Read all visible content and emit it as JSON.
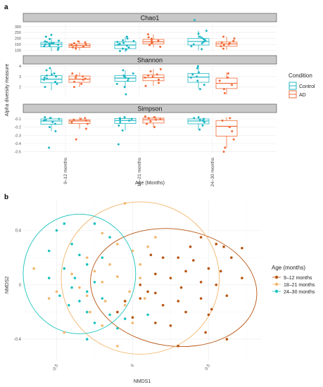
{
  "panel_a": {
    "label": "a",
    "ylabel": "Alpha diversity measure",
    "xlabel": "Age (Months)",
    "legend_title": "Condition",
    "legend_items": [
      "Control",
      "AD"
    ],
    "colors": {
      "Control": "#1fb7c4",
      "AD": "#f26b38"
    }
  },
  "panel_b": {
    "label": "b",
    "xlabel": "NMDS1",
    "ylabel": "NMDS2",
    "legend_title": "Age (months)",
    "legend_items": [
      "9–12 months",
      "18–21 months",
      "24–30 months"
    ],
    "colors": {
      "9-12": "#b85410",
      "18-21": "#f2b66c",
      "24-30": "#1cc3bd"
    }
  },
  "chart_data": [
    {
      "type": "box",
      "facets": [
        "Chao1",
        "Shannon",
        "Simpson"
      ],
      "categories": [
        "9–12 months",
        "18–21 months",
        "24–30 months"
      ],
      "series_names": [
        "Control",
        "AD"
      ],
      "y_ticks": {
        "Chao1": [
          100,
          150,
          200,
          250,
          300
        ],
        "Shannon": [
          2,
          3,
          4
        ],
        "Simpson": [
          -0.1,
          -0.2,
          -0.3,
          -0.4,
          -0.5
        ]
      },
      "y_tick_labels": {
        "Chao1": [
          "100",
          "150",
          "200",
          "250",
          "300"
        ],
        "Shannon": [
          "2",
          "3",
          "4"
        ],
        "Simpson": [
          "-0.1",
          "-0.2",
          "-0.3",
          "-0.4",
          "-0.5"
        ]
      },
      "ylim": {
        "Chao1": [
          80,
          340
        ],
        "Shannon": [
          1.1,
          4.2
        ],
        "Simpson": [
          -0.52,
          -0.04
        ]
      },
      "boxes": {
        "Chao1": [
          {
            "cat": 0,
            "series": "Control",
            "q1": 130,
            "median": 152,
            "q3": 168,
            "wlo": 95,
            "whi": 205
          },
          {
            "cat": 0,
            "series": "AD",
            "q1": 125,
            "median": 140,
            "q3": 155,
            "wlo": 100,
            "whi": 180
          },
          {
            "cat": 1,
            "series": "Control",
            "q1": 115,
            "median": 145,
            "q3": 172,
            "wlo": 85,
            "whi": 215
          },
          {
            "cat": 1,
            "series": "AD",
            "q1": 155,
            "median": 172,
            "q3": 192,
            "wlo": 125,
            "whi": 235
          },
          {
            "cat": 2,
            "series": "Control",
            "q1": 145,
            "median": 175,
            "q3": 200,
            "wlo": 100,
            "whi": 265
          },
          {
            "cat": 2,
            "series": "AD",
            "q1": 135,
            "median": 155,
            "q3": 170,
            "wlo": 105,
            "whi": 215
          }
        ],
        "Shannon": [
          {
            "cat": 0,
            "series": "Control",
            "q1": 2.4,
            "median": 2.75,
            "q3": 3.1,
            "wlo": 1.7,
            "whi": 3.7
          },
          {
            "cat": 0,
            "series": "AD",
            "q1": 2.45,
            "median": 2.75,
            "q3": 3.05,
            "wlo": 2.0,
            "whi": 3.4
          },
          {
            "cat": 1,
            "series": "Control",
            "q1": 2.55,
            "median": 2.85,
            "q3": 3.1,
            "wlo": 1.9,
            "whi": 3.6
          },
          {
            "cat": 1,
            "series": "AD",
            "q1": 2.6,
            "median": 2.9,
            "q3": 3.15,
            "wlo": 2.1,
            "whi": 3.7
          },
          {
            "cat": 2,
            "series": "Control",
            "q1": 2.45,
            "median": 2.95,
            "q3": 3.3,
            "wlo": 1.8,
            "whi": 3.9
          },
          {
            "cat": 2,
            "series": "AD",
            "q1": 1.85,
            "median": 2.35,
            "q3": 2.85,
            "wlo": 1.3,
            "whi": 3.4
          }
        ],
        "Simpson": [
          {
            "cat": 0,
            "series": "Control",
            "q1": -0.165,
            "median": -0.125,
            "q3": -0.1,
            "wlo": -0.25,
            "whi": -0.07
          },
          {
            "cat": 0,
            "series": "AD",
            "q1": -0.155,
            "median": -0.125,
            "q3": -0.11,
            "wlo": -0.22,
            "whi": -0.08
          },
          {
            "cat": 1,
            "series": "Control",
            "q1": -0.155,
            "median": -0.12,
            "q3": -0.095,
            "wlo": -0.24,
            "whi": -0.07
          },
          {
            "cat": 1,
            "series": "AD",
            "q1": -0.15,
            "median": -0.11,
            "q3": -0.09,
            "wlo": -0.2,
            "whi": -0.07
          },
          {
            "cat": 2,
            "series": "Control",
            "q1": -0.16,
            "median": -0.125,
            "q3": -0.1,
            "wlo": -0.23,
            "whi": -0.07
          },
          {
            "cat": 2,
            "series": "AD",
            "q1": -0.31,
            "median": -0.19,
            "q3": -0.12,
            "wlo": -0.45,
            "whi": -0.08
          }
        ]
      },
      "points": {
        "Chao1": [
          [
            0,
            "Control",
            [
              105,
              120,
              135,
              140,
              148,
              150,
              155,
              160,
              162,
              170,
              175,
              182,
              195,
              215,
              230
            ]
          ],
          [
            0,
            "AD",
            [
              115,
              125,
              130,
              138,
              142,
              148,
              152,
              160,
              168,
              175
            ]
          ],
          [
            1,
            "Control",
            [
              95,
              105,
              115,
              125,
              140,
              148,
              155,
              162,
              170,
              178,
              185,
              200,
              215
            ]
          ],
          [
            1,
            "AD",
            [
              130,
              145,
              160,
              168,
              175,
              182,
              190,
              198,
              210,
              235
            ]
          ],
          [
            2,
            "Control",
            [
              110,
              135,
              150,
              160,
              172,
              180,
              188,
              195,
              205,
              215,
              240,
              265,
              355
            ]
          ],
          [
            2,
            "AD",
            [
              115,
              135,
              145,
              152,
              160,
              168,
              180,
              200,
              215
            ]
          ]
        ],
        "Shannon": [
          [
            0,
            "Control",
            [
              2.0,
              2.3,
              2.5,
              2.7,
              2.8,
              2.9,
              3.0,
              3.1,
              3.2,
              3.3,
              3.6,
              3.8
            ]
          ],
          [
            0,
            "AD",
            [
              2.0,
              2.3,
              2.5,
              2.7,
              2.8,
              2.9,
              3.0,
              3.1,
              3.3
            ]
          ],
          [
            1,
            "Control",
            [
              1.3,
              2.0,
              2.3,
              2.6,
              2.8,
              2.9,
              3.0,
              3.1,
              3.3,
              3.6
            ]
          ],
          [
            1,
            "AD",
            [
              2.1,
              2.4,
              2.7,
              2.9,
              3.0,
              3.1,
              3.2,
              3.5,
              3.7
            ]
          ],
          [
            2,
            "Control",
            [
              1.8,
              2.2,
              2.6,
              2.9,
              3.0,
              3.2,
              3.4,
              3.8,
              4.0
            ]
          ],
          [
            2,
            "AD",
            [
              1.4,
              1.8,
              2.2,
              2.6,
              2.9,
              3.3
            ]
          ]
        ],
        "Simpson": [
          [
            0,
            "Control",
            [
              -0.45,
              -0.25,
              -0.2,
              -0.16,
              -0.14,
              -0.12,
              -0.11,
              -0.1,
              -0.09,
              -0.08
            ]
          ],
          [
            0,
            "AD",
            [
              -0.35,
              -0.22,
              -0.16,
              -0.14,
              -0.12,
              -0.11,
              -0.1,
              -0.09
            ]
          ],
          [
            1,
            "Control",
            [
              -0.41,
              -0.24,
              -0.18,
              -0.14,
              -0.12,
              -0.11,
              -0.1,
              -0.09,
              -0.08
            ]
          ],
          [
            1,
            "AD",
            [
              -0.2,
              -0.16,
              -0.13,
              -0.11,
              -0.1,
              -0.09,
              -0.08,
              -0.07
            ]
          ],
          [
            2,
            "Control",
            [
              -0.23,
              -0.18,
              -0.14,
              -0.12,
              -0.11,
              -0.1,
              -0.09,
              -0.08
            ]
          ],
          [
            2,
            "AD",
            [
              -0.5,
              -0.45,
              -0.35,
              -0.25,
              -0.2,
              -0.12,
              -0.09
            ]
          ]
        ]
      }
    },
    {
      "type": "scatter",
      "xlabel": "NMDS1",
      "ylabel": "NMDS2",
      "xlim": [
        -0.72,
        0.85
      ],
      "ylim": [
        -0.56,
        0.62
      ],
      "x_ticks": [
        -0.5,
        0,
        0.5
      ],
      "x_tick_labels": [
        "-0.5",
        "0",
        "0.5"
      ],
      "y_ticks": [
        -0.4,
        0,
        0.4
      ],
      "y_tick_labels": [
        "-0.4",
        "0",
        "0.4"
      ],
      "ellipses": [
        {
          "group": "9-12",
          "cx": 0.27,
          "cy": -0.02,
          "rx": 0.55,
          "ry": 0.43,
          "angle": 8
        },
        {
          "group": "18-21",
          "cx": 0.05,
          "cy": 0.05,
          "rx": 0.52,
          "ry": 0.56,
          "angle": 0
        },
        {
          "group": "24-30",
          "cx": -0.35,
          "cy": 0.08,
          "rx": 0.37,
          "ry": 0.44,
          "angle": 0
        }
      ],
      "series": [
        {
          "name": "9–12 months",
          "group": "9-12",
          "points": [
            [
              0.45,
              0.35
            ],
            [
              0.55,
              0.3
            ],
            [
              0.6,
              0.28
            ],
            [
              0.72,
              0.27
            ],
            [
              0.65,
              0.2
            ],
            [
              0.4,
              0.18
            ],
            [
              0.3,
              0.2
            ],
            [
              0.2,
              0.2
            ],
            [
              0.12,
              0.22
            ],
            [
              0.5,
              0.12
            ],
            [
              0.72,
              0.05
            ],
            [
              0.58,
              0.1
            ],
            [
              0.35,
              0.1
            ],
            [
              0.25,
              0.05
            ],
            [
              0.15,
              0.08
            ],
            [
              0.05,
              0.0
            ],
            [
              0.45,
              0.02
            ],
            [
              0.55,
              0.0
            ],
            [
              0.32,
              -0.02
            ],
            [
              0.15,
              -0.06
            ],
            [
              0.05,
              -0.1
            ],
            [
              -0.05,
              -0.12
            ],
            [
              0.3,
              -0.12
            ],
            [
              0.45,
              -0.1
            ],
            [
              0.62,
              -0.08
            ],
            [
              0.2,
              -0.15
            ],
            [
              0.35,
              -0.2
            ],
            [
              0.5,
              -0.22
            ],
            [
              0.15,
              -0.28
            ],
            [
              0.0,
              -0.24
            ],
            [
              0.25,
              -0.3
            ],
            [
              0.3,
              -0.45
            ],
            [
              0.62,
              -0.4
            ],
            [
              0.48,
              -0.35
            ],
            [
              -0.1,
              -0.2
            ],
            [
              0.1,
              -0.05
            ],
            [
              0.38,
              0.28
            ],
            [
              0.52,
              -0.18
            ]
          ]
        },
        {
          "name": "18–21 months",
          "group": "18-21",
          "points": [
            [
              -0.05,
              0.6
            ],
            [
              -0.2,
              0.38
            ],
            [
              -0.1,
              0.3
            ],
            [
              0.0,
              0.25
            ],
            [
              -0.3,
              0.2
            ],
            [
              -0.15,
              0.15
            ],
            [
              0.05,
              0.15
            ],
            [
              -0.25,
              0.1
            ],
            [
              -0.4,
              0.08
            ],
            [
              -0.1,
              0.06
            ],
            [
              0.05,
              0.05
            ],
            [
              -0.2,
              0.02
            ],
            [
              -0.35,
              -0.02
            ],
            [
              -0.5,
              -0.05
            ],
            [
              -0.3,
              -0.08
            ],
            [
              0.08,
              -0.1
            ],
            [
              -0.18,
              -0.12
            ],
            [
              -0.05,
              -0.15
            ],
            [
              -0.28,
              -0.2
            ],
            [
              0.0,
              -0.28
            ],
            [
              -0.2,
              -0.3
            ],
            [
              -0.45,
              -0.35
            ],
            [
              -0.1,
              -0.45
            ],
            [
              -0.65,
              0.12
            ],
            [
              -0.55,
              -0.1
            ],
            [
              0.1,
              0.28
            ],
            [
              -0.02,
              -0.05
            ],
            [
              0.15,
              0.35
            ]
          ]
        },
        {
          "name": "24–30 months",
          "group": "24-30",
          "points": [
            [
              -0.25,
              0.45
            ],
            [
              -0.5,
              0.4
            ],
            [
              -0.4,
              0.3
            ],
            [
              -0.55,
              0.25
            ],
            [
              -0.35,
              0.22
            ],
            [
              -0.2,
              0.2
            ],
            [
              -0.3,
              0.15
            ],
            [
              -0.45,
              0.12
            ],
            [
              -0.55,
              0.05
            ],
            [
              -0.38,
              0.05
            ],
            [
              -0.25,
              0.02
            ],
            [
              -0.4,
              -0.02
            ],
            [
              -0.3,
              -0.05
            ],
            [
              -0.48,
              -0.08
            ],
            [
              -0.35,
              -0.12
            ],
            [
              -0.2,
              -0.1
            ],
            [
              -0.42,
              -0.15
            ],
            [
              -0.3,
              -0.2
            ],
            [
              -0.15,
              -0.22
            ],
            [
              -0.05,
              -0.25
            ],
            [
              -0.25,
              -0.28
            ],
            [
              -0.1,
              -0.32
            ],
            [
              0.1,
              -0.22
            ],
            [
              -0.3,
              -0.4
            ],
            [
              -0.45,
              0.45
            ],
            [
              -0.15,
              0.35
            ]
          ]
        }
      ]
    }
  ]
}
